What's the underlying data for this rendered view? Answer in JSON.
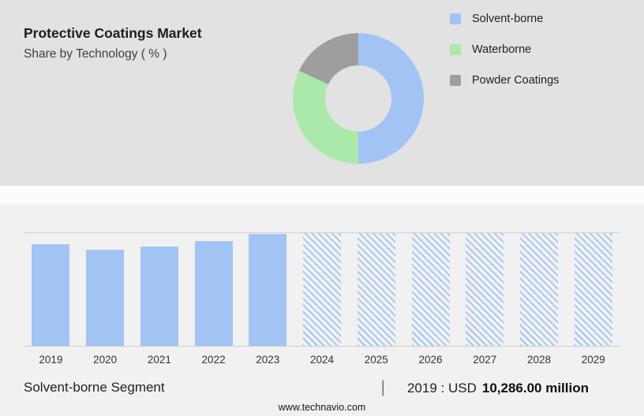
{
  "header": {
    "title": "Protective Coatings Market",
    "subtitle": "Share by Technology ( % )"
  },
  "legend": [
    {
      "label": "Solvent-borne",
      "color": "#a2c4f5"
    },
    {
      "label": "Waterborne",
      "color": "#abe9ab"
    },
    {
      "label": "Powder Coatings",
      "color": "#9e9e9e"
    }
  ],
  "chart_data": [
    {
      "type": "pie",
      "subtype": "donut",
      "title": "Share by Technology ( % )",
      "labels": [
        "Solvent-borne",
        "Waterborne",
        "Powder Coatings"
      ],
      "values": [
        50,
        32,
        18
      ],
      "colors": [
        "#a2c4f5",
        "#abe9ab",
        "#9e9e9e"
      ],
      "legend_position": "right",
      "hole_background": "#e2e2e2"
    },
    {
      "type": "bar",
      "categories": [
        "2019",
        "2020",
        "2021",
        "2022",
        "2023",
        "2024",
        "2025",
        "2026",
        "2027",
        "2028",
        "2029"
      ],
      "values": [
        10286,
        9700,
        10050,
        10600,
        11300,
        11400,
        11400,
        11400,
        11400,
        11400,
        11400
      ],
      "value_labels_shown": false,
      "known_value_note": "2019 : USD 10,286.00 million; other values estimated from bar heights",
      "forecast_from": "2024",
      "forecast_style": "hatched",
      "bar_color": "#a2c4f5",
      "grid": "top-and-baseline",
      "ylim": [
        0,
        11400
      ],
      "xlabel": "",
      "ylabel": ""
    }
  ],
  "footer": {
    "segment_label": "Solvent-borne Segment",
    "separator": "|",
    "value_prefix": "2019 : USD",
    "value_bold": "10,286.00 million",
    "website": "www.technavio.com"
  }
}
